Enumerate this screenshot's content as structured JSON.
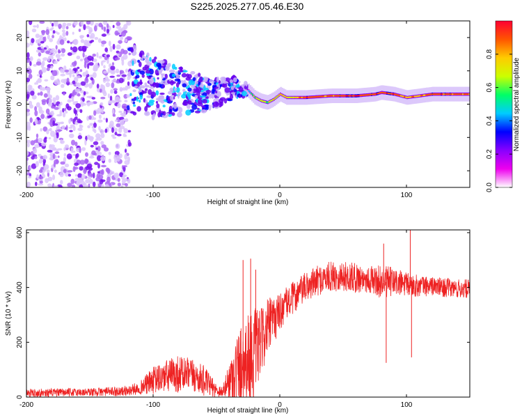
{
  "title": "S225.2025.277.05.46.E30",
  "chart_data": [
    {
      "type": "heatmap",
      "title": "S225.2025.277.05.46.E30",
      "xlabel": "Height of straight line (km)",
      "ylabel": "Frequency (Hz)",
      "xlim": [
        -200,
        150
      ],
      "ylim": [
        -25,
        25
      ],
      "xticks": [
        -200,
        -100,
        0,
        100
      ],
      "xtick_labels": [
        "-200",
        "-100",
        "0",
        "100"
      ],
      "yticks": [
        -20,
        -10,
        0,
        10,
        20
      ],
      "ytick_labels": [
        "-20",
        "-10",
        "0",
        "10",
        "20"
      ],
      "colorbar": {
        "label": "Normalized spectral amplitude",
        "range": [
          0,
          1
        ],
        "ticks": [
          0.0,
          0.2,
          0.4,
          0.6,
          0.8
        ],
        "tick_labels": [
          "0.0",
          "0.2",
          "0.4",
          "0.6",
          "0.8"
        ],
        "colors": [
          "#ffffff",
          "#ee00ee",
          "#8800ff",
          "#0000ff",
          "#00ccff",
          "#00ff66",
          "#ccff00",
          "#ffcc00",
          "#ff5500",
          "#ff0033"
        ]
      },
      "ridge": {
        "x": [
          -120,
          -100,
          -80,
          -60,
          -45,
          -35,
          -25,
          -20,
          -15,
          -10,
          -5,
          0,
          5,
          20,
          40,
          60,
          75,
          80,
          90,
          100,
          110,
          120,
          150
        ],
        "frequency": [
          8,
          5,
          4,
          3,
          4,
          5,
          4,
          2,
          1,
          0.5,
          1.5,
          3,
          2,
          2,
          2.5,
          2.5,
          3,
          3.5,
          3,
          2,
          2.5,
          3,
          3
        ],
        "peak_amplitude": [
          0.25,
          0.3,
          0.35,
          0.35,
          0.4,
          0.45,
          0.5,
          0.6,
          0.7,
          0.6,
          0.7,
          0.8,
          0.7,
          0.9,
          0.85,
          0.95,
          0.9,
          0.95,
          0.9,
          0.8,
          0.85,
          0.9,
          0.85
        ]
      },
      "noise_region": {
        "x_range": [
          -200,
          -120
        ],
        "amplitude": "low (0.05-0.3)"
      }
    },
    {
      "type": "line",
      "series": [
        {
          "name": "SNR",
          "color": "#ee2222"
        }
      ],
      "xlabel": "Height of straight line (km)",
      "ylabel": "SNR (10 * v/v)",
      "xlim": [
        -200,
        150
      ],
      "ylim": [
        0,
        610
      ],
      "xticks": [
        -200,
        -100,
        0,
        100
      ],
      "xtick_labels": [
        "-200",
        "-100",
        "0",
        "100"
      ],
      "yticks": [
        0,
        200,
        400,
        600
      ],
      "ytick_labels": [
        "0",
        "200",
        "400",
        "600"
      ],
      "envelope": {
        "x": [
          -200,
          -150,
          -120,
          -110,
          -100,
          -90,
          -80,
          -70,
          -60,
          -50,
          -45,
          -40,
          -35,
          -30,
          -25,
          -20,
          -15,
          -10,
          -5,
          0,
          5,
          10,
          20,
          30,
          40,
          50,
          60,
          70,
          80,
          90,
          100,
          110,
          120,
          130,
          140,
          150
        ],
        "mean": [
          15,
          18,
          22,
          35,
          60,
          75,
          85,
          80,
          60,
          25,
          20,
          60,
          90,
          120,
          140,
          160,
          200,
          250,
          280,
          310,
          340,
          360,
          400,
          425,
          440,
          440,
          435,
          430,
          420,
          420,
          410,
          405,
          405,
          400,
          395,
          395
        ],
        "spread": [
          15,
          15,
          18,
          25,
          50,
          60,
          70,
          60,
          55,
          25,
          20,
          70,
          130,
          160,
          170,
          170,
          120,
          110,
          90,
          70,
          60,
          60,
          55,
          55,
          55,
          55,
          55,
          50,
          60,
          55,
          45,
          40,
          35,
          35,
          35,
          35
        ]
      },
      "spikes": [
        {
          "x": -29,
          "y": 500
        },
        {
          "x": -23,
          "y": 505
        },
        {
          "x": -19,
          "y": 465
        },
        {
          "x": 82,
          "y": 560
        },
        {
          "x": 84,
          "y": 125
        },
        {
          "x": 103,
          "y": 610
        },
        {
          "x": 104,
          "y": 145
        }
      ]
    }
  ]
}
